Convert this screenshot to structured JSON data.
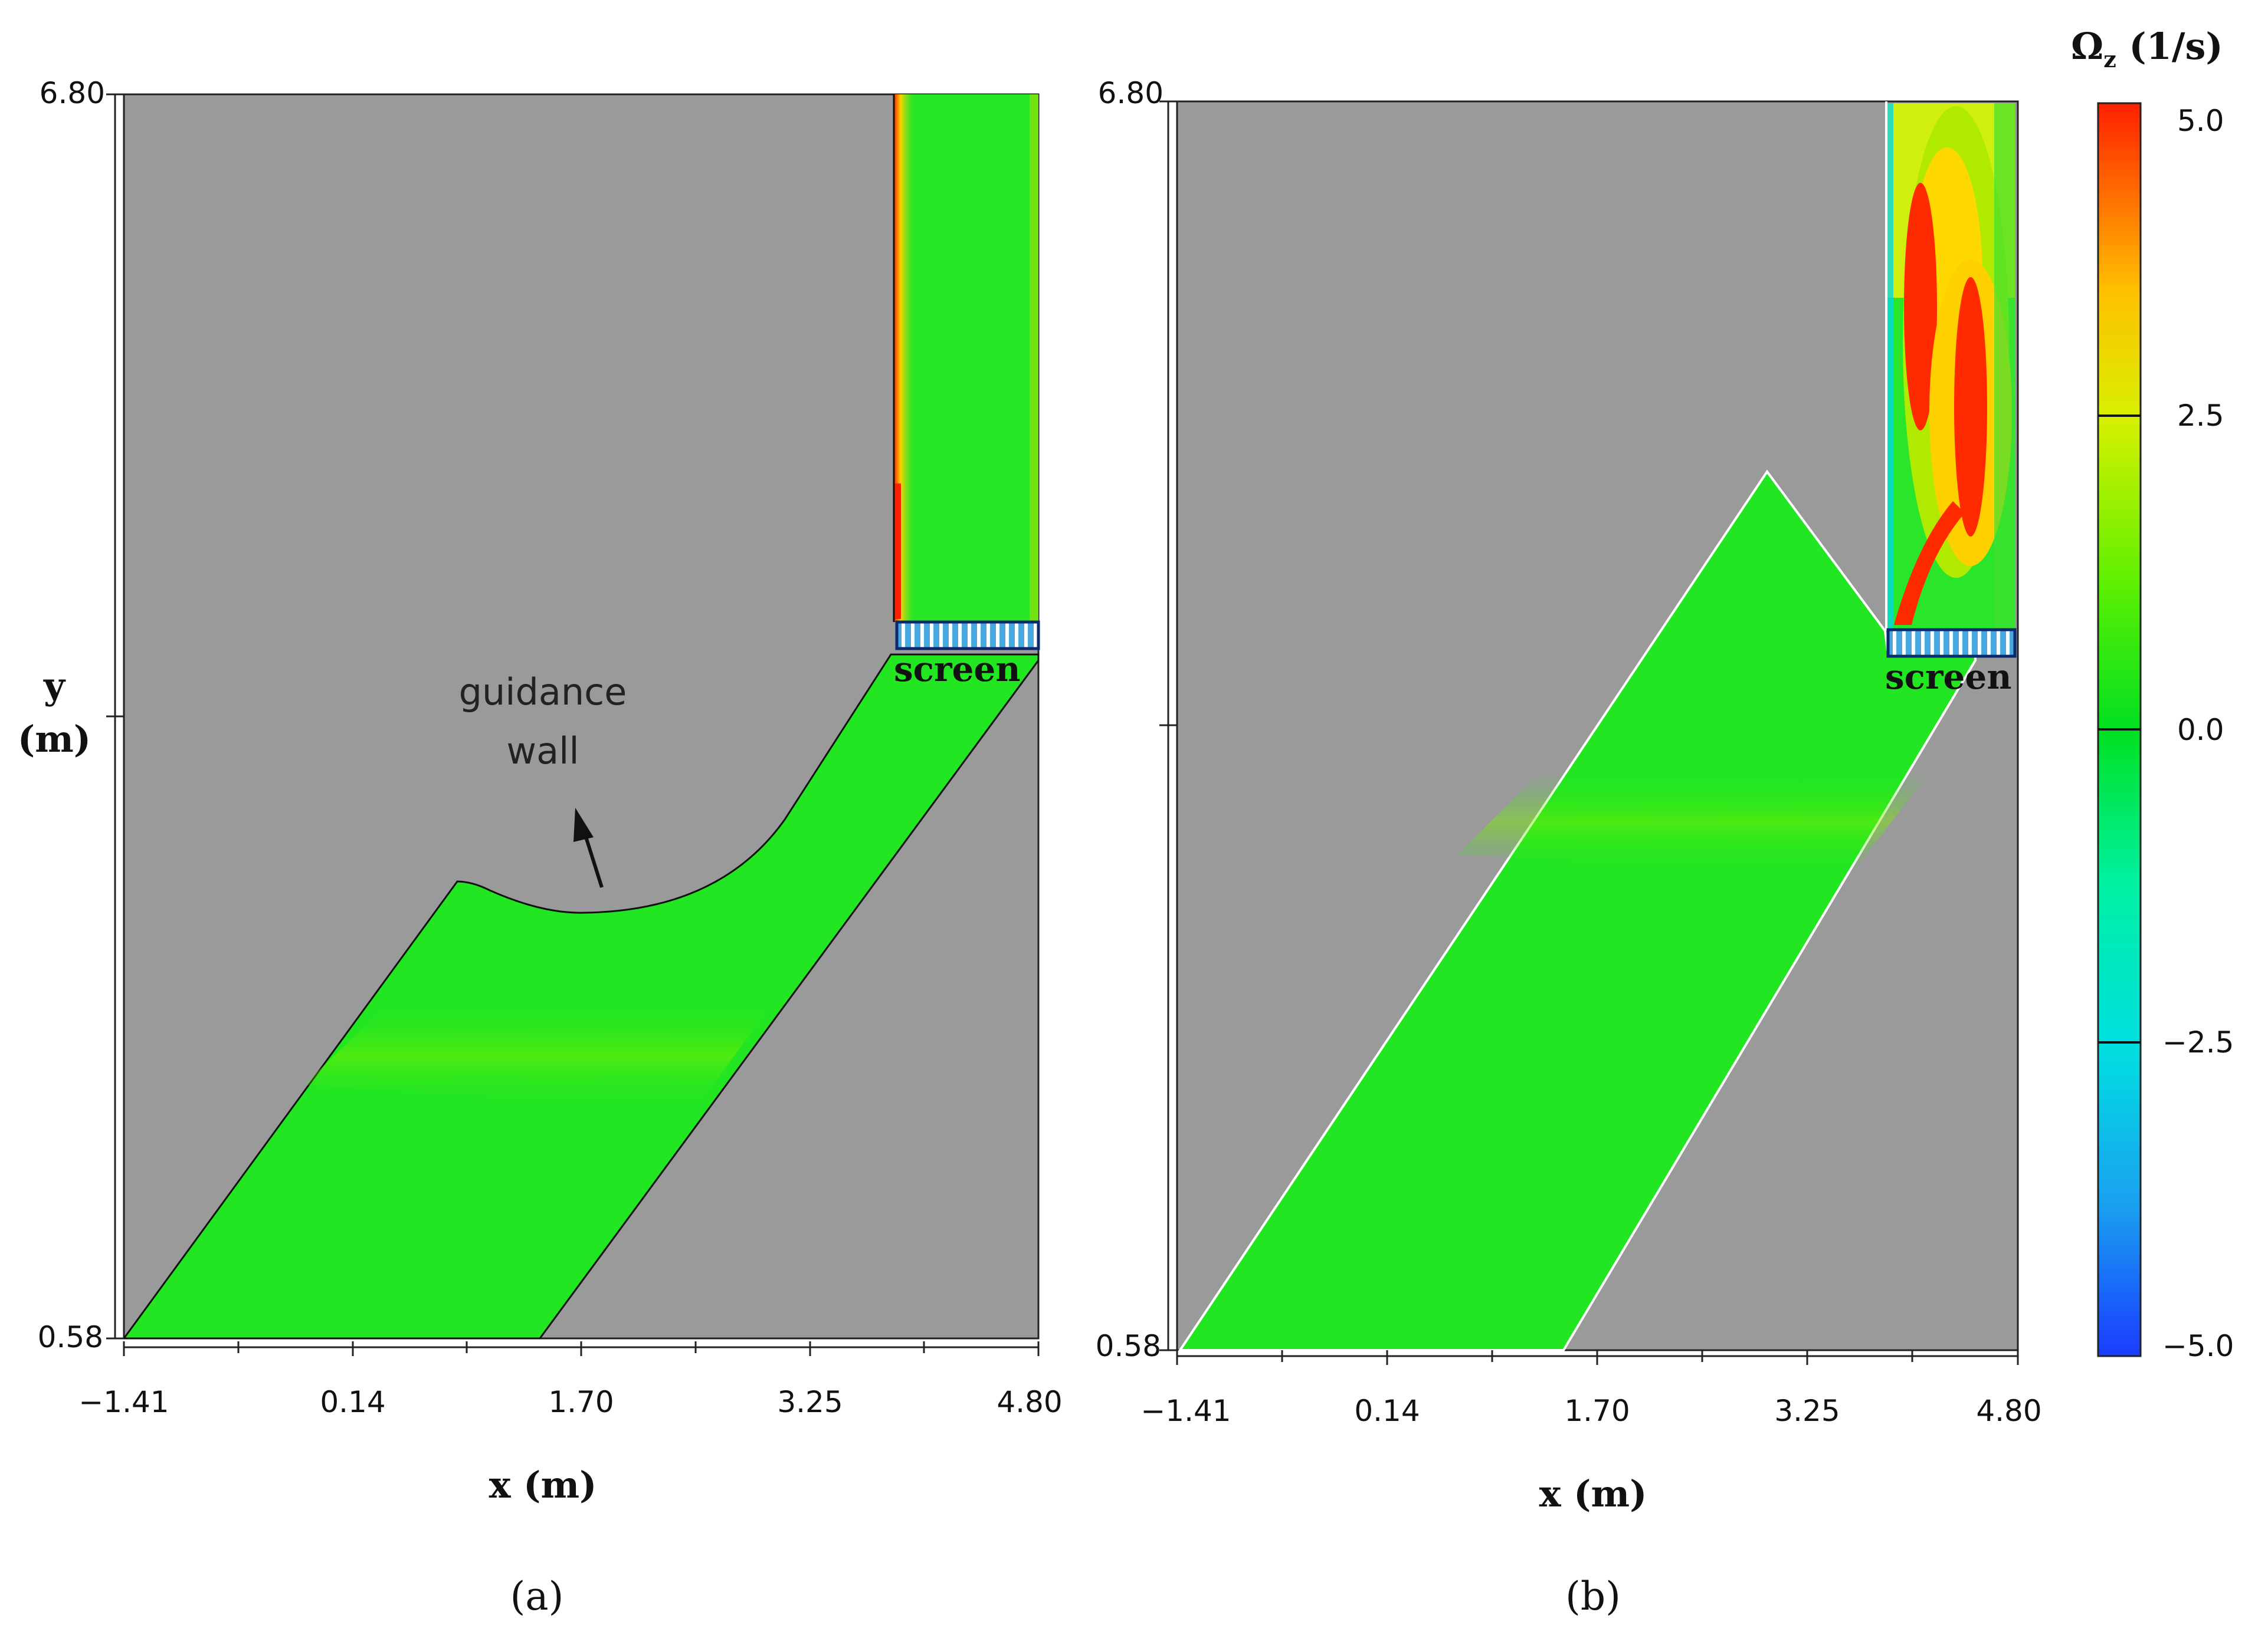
{
  "colorbar": {
    "title": "Ω",
    "title_sub": "z",
    "title_unit": " (1/s)",
    "ticks": [
      "5.0",
      "2.5",
      "0.0",
      "−2.5",
      "−5.0"
    ],
    "range": [
      -5.0,
      5.0
    ],
    "colors": [
      "#1a3cff",
      "#1aa0f0",
      "#00e0e0",
      "#00f0a0",
      "#00e020",
      "#30f000",
      "#c0f000",
      "#ffe000",
      "#ff9000",
      "#ff2000"
    ]
  },
  "panel_a": {
    "caption": "(a)",
    "y_tick_top": "6.80",
    "y_tick_bottom": "0.58",
    "x_ticks": [
      "−1.41",
      "0.14",
      "1.70",
      "3.25",
      "4.80"
    ],
    "x_label": "x (m)",
    "y_label_1": "y",
    "y_label_2": "(m)",
    "screen_label": "screen",
    "annotation_1": "guidance",
    "annotation_2": "wall"
  },
  "panel_b": {
    "caption": "(b)",
    "y_tick_top": "6.80",
    "y_tick_bottom": "0.58",
    "x_ticks": [
      "−1.41",
      "0.14",
      "1.70",
      "3.25",
      "4.80"
    ],
    "x_label": "x (m)",
    "screen_label": "screen"
  },
  "colors": {
    "background_gray": "#9a9a9a",
    "flow_green": "#1ee61e",
    "high_red": "#ff2000",
    "screen_blue": "#4aa8e0"
  }
}
